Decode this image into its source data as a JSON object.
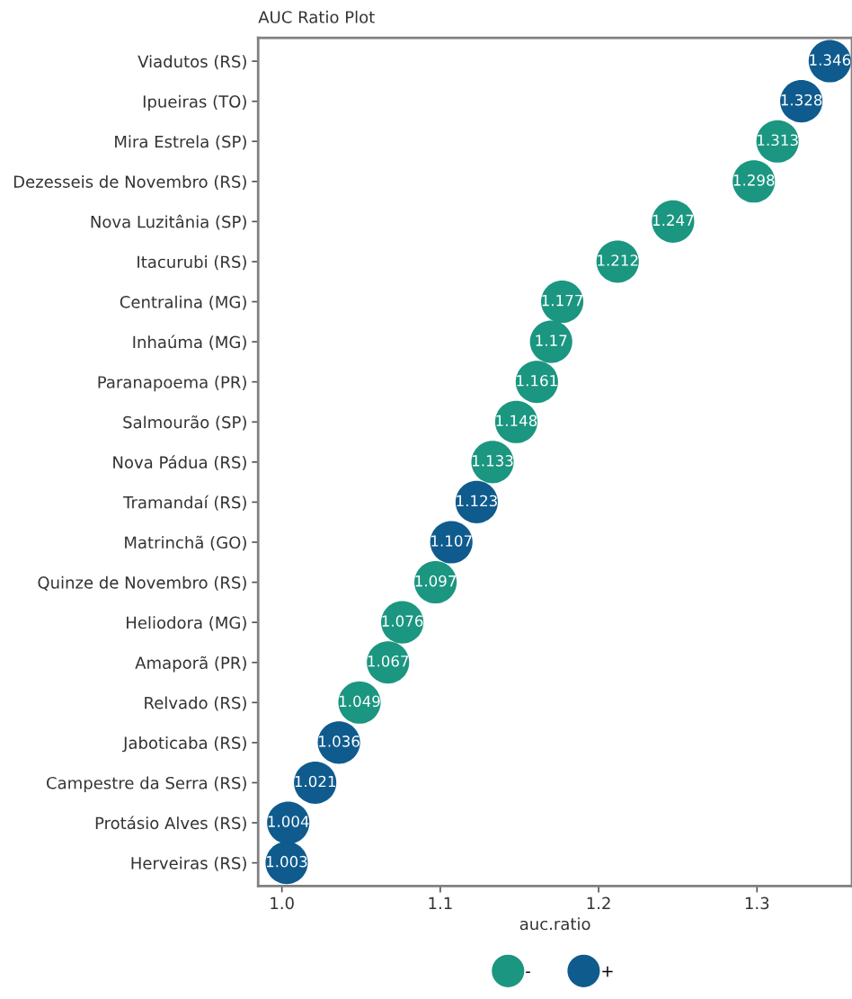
{
  "chart_data": {
    "type": "scatter",
    "title": "AUC Ratio Plot",
    "xlabel": "auc.ratio",
    "orientation": "horizontal",
    "categories": [
      "Viadutos (RS)",
      "Ipueiras (TO)",
      "Mira Estrela (SP)",
      "Dezesseis de Novembro (RS)",
      "Nova Luzitânia (SP)",
      "Itacurubi (RS)",
      "Centralina (MG)",
      "Inhaúma (MG)",
      "Paranapoema (PR)",
      "Salmourão (SP)",
      "Nova Pádua (RS)",
      "Tramandaí (RS)",
      "Matrinchã (GO)",
      "Quinze de Novembro (RS)",
      "Heliodora (MG)",
      "Amaporã (PR)",
      "Relvado (RS)",
      "Jaboticaba (RS)",
      "Campestre da Serra (RS)",
      "Protásio Alves (RS)",
      "Herveiras (RS)"
    ],
    "series": [
      {
        "name": "-",
        "color": "#1b9680",
        "values": [
          null,
          null,
          1.313,
          1.298,
          1.247,
          1.212,
          1.177,
          1.17,
          1.161,
          1.148,
          1.133,
          null,
          null,
          1.097,
          1.076,
          1.067,
          1.049,
          null,
          null,
          null,
          null
        ]
      },
      {
        "name": "+",
        "color": "#0f5b8e",
        "values": [
          1.346,
          1.328,
          null,
          null,
          null,
          null,
          null,
          null,
          null,
          null,
          null,
          1.123,
          1.107,
          null,
          null,
          null,
          null,
          1.036,
          1.021,
          1.004,
          1.003
        ]
      }
    ],
    "xlim": [
      0.985,
      1.36
    ],
    "xticks": [
      {
        "value": 1.0,
        "label": "1.0"
      },
      1.1,
      1.2,
      1.3
    ],
    "data_labels": true,
    "grid": false,
    "legend": "bottom",
    "marker": "circle"
  }
}
